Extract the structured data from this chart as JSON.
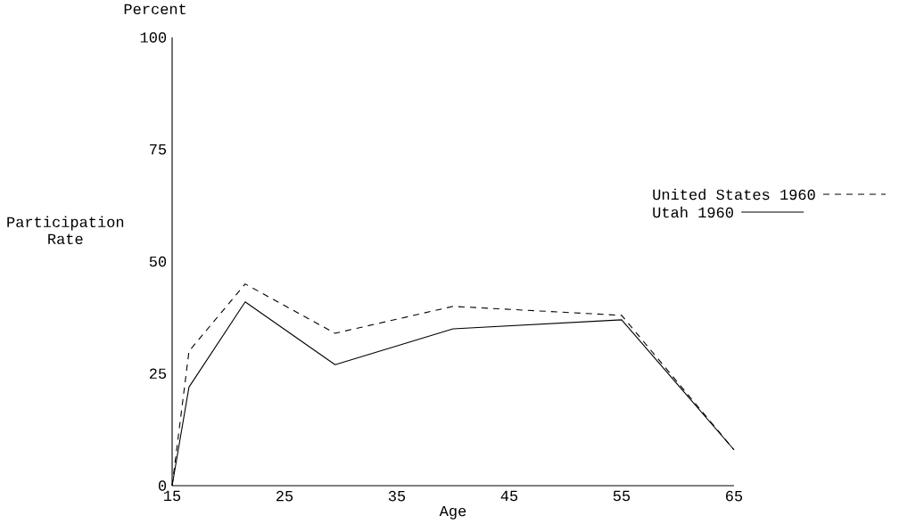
{
  "chart_data": {
    "type": "line",
    "xlabel": "Age",
    "ylabel": "Participation Rate",
    "annotations": [
      "Percent"
    ],
    "xlim": [
      15,
      65
    ],
    "ylim": [
      0,
      100
    ],
    "xticks": [
      15,
      25,
      35,
      45,
      55,
      65
    ],
    "yticks": [
      0,
      25,
      50,
      75,
      100
    ],
    "legend": "right",
    "grid": false,
    "marker": "none",
    "series": [
      {
        "name": "United States 1960",
        "color": "#000000",
        "line_style": "dashed",
        "x": [
          15,
          16.5,
          21.5,
          29.5,
          40,
          55,
          65
        ],
        "values": [
          0,
          30,
          45,
          34,
          40,
          38,
          8
        ]
      },
      {
        "name": "Utah 1960",
        "color": "#000000",
        "line_style": "solid",
        "x": [
          15,
          16.5,
          21.5,
          29.5,
          40,
          55,
          65
        ],
        "values": [
          0,
          22,
          41,
          27,
          35,
          37,
          8
        ]
      }
    ]
  }
}
